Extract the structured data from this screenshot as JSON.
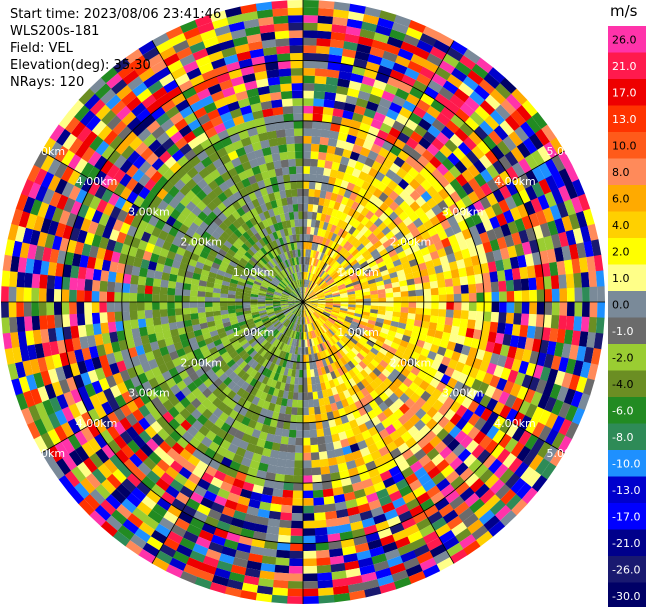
{
  "info": {
    "start_time": "Start time: 2023/08/06 23:41:46",
    "instrument": "WLS200s-181",
    "field": "Field: VEL",
    "elevation": "Elevation(deg): 35.30",
    "nrays": "NRays: 120"
  },
  "ppi": {
    "nrays": 120,
    "ngates": 40,
    "max_range_km": 5.0,
    "range_rings_km": [
      1,
      2,
      3,
      4
    ],
    "range_labels": [
      "1.00km",
      "2.00km",
      "3.00km",
      "4.00km",
      "5.00km"
    ]
  },
  "colorbar": {
    "unit": "m/s",
    "ticks": [
      "26.0",
      "21.0",
      "17.0",
      "13.0",
      "10.0",
      "8.0",
      "6.0",
      "4.0",
      "2.0",
      "1.0",
      "0.0",
      "-1.0",
      "-2.0",
      "-4.0",
      "-6.0",
      "-8.0",
      "-10.0",
      "-13.0",
      "-17.0",
      "-21.0",
      "-26.0",
      "-30.0"
    ],
    "colors": [
      "#ff33aa",
      "#ff1a4d",
      "#ee0000",
      "#ff3300",
      "#ff5a1a",
      "#ff8a5a",
      "#ffaa00",
      "#ffd000",
      "#ffff00",
      "#ffff88",
      "#7a8a99",
      "#6b6b6b",
      "#9acd32",
      "#6b8e23",
      "#228b22",
      "#2e8b57",
      "#1e90ff",
      "#0000cd",
      "#0000ff",
      "#00008b",
      "#191970",
      "#000066"
    ]
  }
}
